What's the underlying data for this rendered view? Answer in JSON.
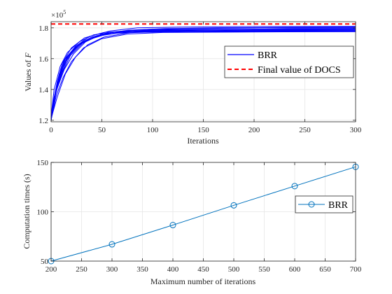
{
  "chart_data": [
    {
      "type": "line",
      "xlabel": "Iterations",
      "ylabel": "Values of",
      "ylabel_symbol": "F",
      "exponent_label": "×10",
      "exponent_power": "5",
      "xlim": [
        0,
        300
      ],
      "ylim": [
        1.19,
        1.84
      ],
      "xticks": [
        "0",
        "50",
        "100",
        "150",
        "200",
        "250",
        "300"
      ],
      "xtick_values": [
        0,
        50,
        100,
        150,
        200,
        250,
        300
      ],
      "yticks": [
        "1.2",
        "1.4",
        "1.6",
        "1.8"
      ],
      "ytick_values": [
        1.2,
        1.4,
        1.6,
        1.8
      ],
      "grid": true,
      "legend_position": "right",
      "series": [
        {
          "name": "BRR",
          "color": "#0000ff",
          "style": "solid",
          "runs": [
            {
              "x": [
                0,
                3,
                8,
                15,
                25,
                40,
                60,
                90,
                130,
                200,
                300
              ],
              "y": [
                1.2,
                1.33,
                1.5,
                1.6,
                1.68,
                1.74,
                1.77,
                1.78,
                1.785,
                1.79,
                1.792
              ]
            },
            {
              "x": [
                0,
                4,
                10,
                18,
                30,
                45,
                70,
                100,
                150,
                220,
                300
              ],
              "y": [
                1.21,
                1.38,
                1.52,
                1.63,
                1.7,
                1.75,
                1.77,
                1.78,
                1.78,
                1.781,
                1.782
              ]
            },
            {
              "x": [
                0,
                2,
                6,
                12,
                22,
                35,
                55,
                80,
                120,
                200,
                300
              ],
              "y": [
                1.22,
                1.3,
                1.42,
                1.55,
                1.66,
                1.72,
                1.76,
                1.775,
                1.78,
                1.785,
                1.786
              ]
            },
            {
              "x": [
                0,
                5,
                12,
                20,
                32,
                50,
                75,
                110,
                160,
                230,
                300
              ],
              "y": [
                1.2,
                1.36,
                1.48,
                1.58,
                1.67,
                1.73,
                1.76,
                1.77,
                1.772,
                1.774,
                1.775
              ]
            },
            {
              "x": [
                0,
                3,
                9,
                16,
                28,
                42,
                65,
                95,
                140,
                210,
                300
              ],
              "y": [
                1.23,
                1.4,
                1.55,
                1.64,
                1.71,
                1.755,
                1.775,
                1.79,
                1.795,
                1.8,
                1.801
              ]
            },
            {
              "x": [
                0,
                6,
                14,
                24,
                36,
                52,
                78,
                115,
                170,
                240,
                300
              ],
              "y": [
                1.21,
                1.35,
                1.5,
                1.61,
                1.69,
                1.74,
                1.77,
                1.785,
                1.79,
                1.795,
                1.796
              ]
            },
            {
              "x": [
                0,
                2,
                7,
                13,
                24,
                38,
                58,
                85,
                125,
                190,
                300
              ],
              "y": [
                1.2,
                1.32,
                1.47,
                1.59,
                1.68,
                1.745,
                1.78,
                1.8,
                1.805,
                1.808,
                1.81
              ]
            },
            {
              "x": [
                0,
                4,
                11,
                19,
                31,
                47,
                72,
                105,
                155,
                225,
                300
              ],
              "y": [
                1.22,
                1.37,
                1.51,
                1.62,
                1.7,
                1.75,
                1.775,
                1.785,
                1.79,
                1.792,
                1.793
              ]
            },
            {
              "x": [
                0,
                3,
                8,
                14,
                26,
                40,
                62,
                92,
                135,
                205,
                300
              ],
              "y": [
                1.2,
                1.34,
                1.49,
                1.6,
                1.69,
                1.74,
                1.765,
                1.772,
                1.775,
                1.777,
                1.778
              ]
            },
            {
              "x": [
                0,
                5,
                13,
                22,
                34,
                50,
                76,
                112,
                165,
                235,
                300
              ],
              "y": [
                1.21,
                1.39,
                1.53,
                1.63,
                1.71,
                1.76,
                1.785,
                1.795,
                1.8,
                1.803,
                1.805
              ]
            },
            {
              "x": [
                0,
                2,
                6,
                11,
                20,
                33,
                52,
                80,
                118,
                185,
                300
              ],
              "y": [
                1.22,
                1.31,
                1.45,
                1.57,
                1.67,
                1.735,
                1.77,
                1.783,
                1.788,
                1.79,
                1.791
              ]
            },
            {
              "x": [
                0,
                4,
                10,
                17,
                29,
                44,
                68,
                100,
                148,
                218,
                300
              ],
              "y": [
                1.2,
                1.36,
                1.5,
                1.615,
                1.695,
                1.745,
                1.768,
                1.776,
                1.779,
                1.78,
                1.781
              ]
            }
          ]
        },
        {
          "name": "Final value of DOCS",
          "color": "#ff0000",
          "style": "dashed",
          "x": [
            0,
            300
          ],
          "y": [
            1.825,
            1.825
          ]
        }
      ]
    },
    {
      "type": "line",
      "xlabel": "Maximum number of iterations",
      "ylabel": "Computation times (s)",
      "xlim": [
        200,
        700
      ],
      "ylim": [
        50,
        150
      ],
      "xticks": [
        "200",
        "250",
        "300",
        "350",
        "400",
        "450",
        "500",
        "550",
        "600",
        "650",
        "700"
      ],
      "xtick_values": [
        200,
        250,
        300,
        350,
        400,
        450,
        500,
        550,
        600,
        650,
        700
      ],
      "yticks": [
        "50",
        "100",
        "150"
      ],
      "ytick_values": [
        50,
        100,
        150
      ],
      "grid": true,
      "legend_position": "right",
      "series": [
        {
          "name": "BRR",
          "color": "#0072bd",
          "marker": "circle",
          "x": [
            200,
            300,
            400,
            500,
            600,
            700
          ],
          "y": [
            50,
            67,
            86.5,
            106.5,
            126,
            145.5
          ]
        }
      ]
    }
  ]
}
